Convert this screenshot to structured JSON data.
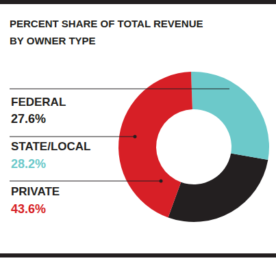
{
  "chart_data": {
    "type": "pie",
    "title": "PERCENT SHARE OF TOTAL REVENUE BY OWNER TYPE",
    "categories": [
      "FEDERAL",
      "STATE/LOCAL",
      "PRIVATE"
    ],
    "values": [
      27.6,
      28.2,
      43.6
    ],
    "value_labels": [
      "27.6%",
      "28.2%",
      "43.6%"
    ],
    "colors": [
      "#231f20",
      "#6cc9ca",
      "#d71f26"
    ],
    "data_labels": true
  }
}
